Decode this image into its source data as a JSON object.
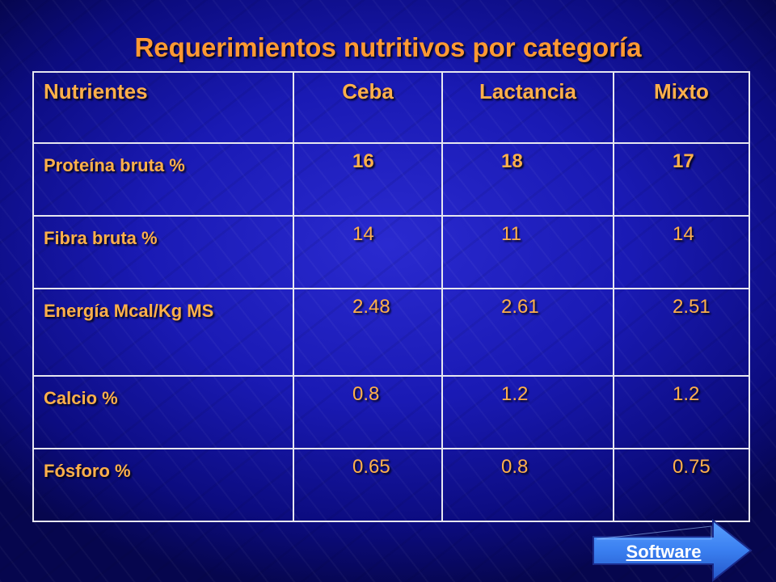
{
  "title": "Requerimientos nutritivos por categoría",
  "table": {
    "headers": [
      "Nutrientes",
      "Ceba",
      "Lactancia",
      "Mixto"
    ],
    "rows": [
      {
        "label": "Proteína bruta %",
        "values": [
          "16",
          "18",
          "17"
        ]
      },
      {
        "label": "Fibra bruta %",
        "values": [
          "14",
          "11",
          "14"
        ]
      },
      {
        "label": "Energía Mcal/Kg MS",
        "values": [
          "2.48",
          "2.61",
          "2.51"
        ]
      },
      {
        "label": "Calcio %",
        "values": [
          "0.8",
          "1.2",
          "1.2"
        ]
      },
      {
        "label": "Fósforo %",
        "values": [
          "0.65",
          "0.8",
          "0.75"
        ]
      }
    ]
  },
  "nav": {
    "software_label": "Software"
  },
  "colors": {
    "text_accent": "#ffb04a",
    "title": "#ff9933",
    "background": "#1a1ab4",
    "nav_button": "#3a7ff0"
  }
}
